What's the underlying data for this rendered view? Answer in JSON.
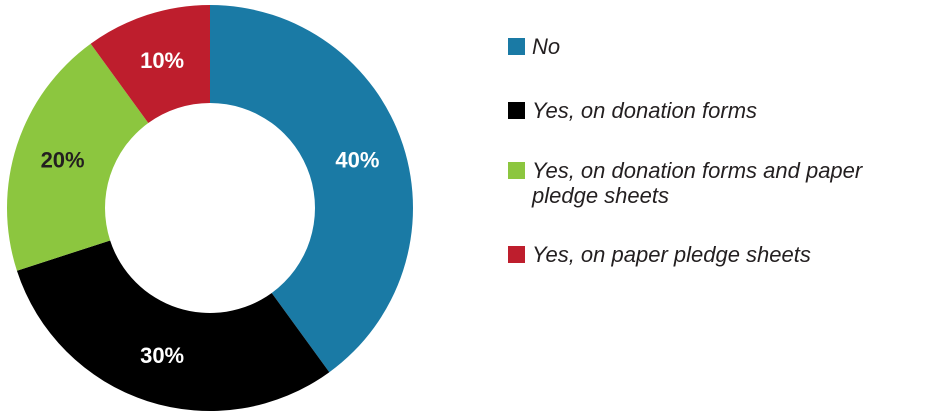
{
  "chart_data": {
    "type": "pie",
    "donut": true,
    "title": "",
    "categories": [
      "No",
      "Yes, on donation forms",
      "Yes, on donation forms and paper pledge sheets",
      "Yes, on paper pledge sheets"
    ],
    "values": [
      40,
      30,
      20,
      10
    ],
    "data_labels": [
      "40%",
      "30%",
      "20%",
      "10%"
    ],
    "colors": [
      "#1a7aa5",
      "#000000",
      "#8cc63f",
      "#be1e2d"
    ],
    "label_colors": [
      "#ffffff",
      "#ffffff",
      "#231f20",
      "#ffffff"
    ],
    "start_angle": "12 o'clock",
    "direction": "clockwise",
    "legend_position": "right"
  },
  "legend": {
    "items": [
      {
        "label": "No",
        "color": "#1a7aa5"
      },
      {
        "label": "Yes, on donation forms",
        "color": "#000000"
      },
      {
        "label": "Yes, on donation forms and paper pledge sheets",
        "color": "#8cc63f"
      },
      {
        "label": "Yes, on paper pledge sheets",
        "color": "#be1e2d"
      }
    ]
  }
}
